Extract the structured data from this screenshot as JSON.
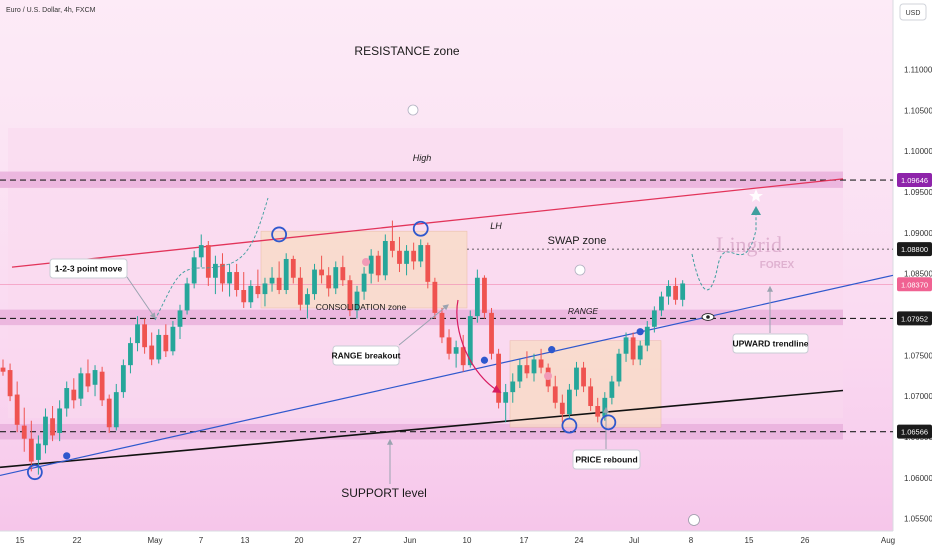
{
  "header": {
    "title": "Euro / U.S. Dollar, 4h, FXCM"
  },
  "axis": {
    "currency": "USD"
  },
  "colors": {
    "bull": "#26a69a",
    "bear": "#ef5350",
    "zone": "#e9b0dc",
    "trendline": "#2f58cd",
    "support_line": "#111111",
    "resistance_line": "#e2345a",
    "box_fill": "#f9dcc4",
    "forecast": "#3f9e9e",
    "marker": "#2f58cd"
  },
  "annotations": {
    "resistance_zone": "RESISTANCE zone",
    "support_level": "SUPPORT level",
    "swap_zone": "SWAP zone",
    "consolidation_zone": "CONSOLIDATION zone",
    "range": "RANGE",
    "high": "High",
    "lh": "LH",
    "point_move": "1-2-3 point move",
    "range_breakout": "RANGE breakout",
    "price_rebound": "PRICE rebound",
    "upward_trendline": "UPWARD trendline",
    "watermark_main": "Lingrid",
    "watermark_sub": "FOREX"
  },
  "chart_data": {
    "type": "candlestick",
    "title": "Euro / U.S. Dollar, 4h, FXCM",
    "ylabel": "USD",
    "ylim": [
      1.0535,
      1.1185
    ],
    "y_ticks": [
      "1.11000",
      "1.10500",
      "1.10000",
      "1.09500",
      "1.09000",
      "1.08500",
      "1.08000",
      "1.07500",
      "1.07000",
      "1.06500",
      "1.06000",
      "1.05500"
    ],
    "x_ticks": [
      "15",
      "22",
      "May",
      "7",
      "13",
      "20",
      "27",
      "Jun",
      "10",
      "17",
      "24",
      "Jul",
      "8",
      "15",
      "26",
      "Aug"
    ],
    "price_labels": [
      "1.09646",
      "1.08800",
      "1.08370",
      "1.07952",
      "1.06566"
    ],
    "price_label_values": [
      1.09646,
      1.088,
      1.0837,
      1.07952,
      1.06566
    ],
    "current_price": 1.0837,
    "zones": [
      {
        "name": "RESISTANCE zone",
        "low": 1.0955,
        "high": 1.0975
      },
      {
        "name": "SWAP zone",
        "low": 1.0787,
        "high": 1.0806
      },
      {
        "name": "SUPPORT level",
        "low": 1.0647,
        "high": 1.0666
      }
    ],
    "series": [
      {
        "points": [
          {
            "i": 0,
            "o": 1.0735,
            "h": 1.0745,
            "l": 1.0725,
            "c": 1.073
          },
          {
            "i": 1,
            "o": 1.0732,
            "h": 1.074,
            "l": 1.0694,
            "c": 1.07
          },
          {
            "i": 2,
            "o": 1.0702,
            "h": 1.0718,
            "l": 1.0656,
            "c": 1.0665
          },
          {
            "i": 3,
            "o": 1.0664,
            "h": 1.0686,
            "l": 1.0632,
            "c": 1.0648
          },
          {
            "i": 4,
            "o": 1.0648,
            "h": 1.067,
            "l": 1.0608,
            "c": 1.062
          },
          {
            "i": 5,
            "o": 1.0622,
            "h": 1.0652,
            "l": 1.0604,
            "c": 1.0642
          },
          {
            "i": 6,
            "o": 1.064,
            "h": 1.0685,
            "l": 1.063,
            "c": 1.0675
          },
          {
            "i": 7,
            "o": 1.0673,
            "h": 1.0688,
            "l": 1.0645,
            "c": 1.0652
          },
          {
            "i": 8,
            "o": 1.0655,
            "h": 1.0695,
            "l": 1.0645,
            "c": 1.0685
          },
          {
            "i": 9,
            "o": 1.0685,
            "h": 1.0718,
            "l": 1.0675,
            "c": 1.071
          },
          {
            "i": 10,
            "o": 1.0708,
            "h": 1.0722,
            "l": 1.0685,
            "c": 1.0695
          },
          {
            "i": 11,
            "o": 1.0697,
            "h": 1.0735,
            "l": 1.0688,
            "c": 1.0728
          },
          {
            "i": 12,
            "o": 1.0728,
            "h": 1.0745,
            "l": 1.0705,
            "c": 1.0712
          },
          {
            "i": 13,
            "o": 1.0714,
            "h": 1.0738,
            "l": 1.07,
            "c": 1.0732
          },
          {
            "i": 14,
            "o": 1.073,
            "h": 1.0736,
            "l": 1.0688,
            "c": 1.0695
          },
          {
            "i": 15,
            "o": 1.0697,
            "h": 1.0702,
            "l": 1.0655,
            "c": 1.0662
          },
          {
            "i": 16,
            "o": 1.0662,
            "h": 1.0715,
            "l": 1.0658,
            "c": 1.0705
          },
          {
            "i": 17,
            "o": 1.0705,
            "h": 1.0745,
            "l": 1.0698,
            "c": 1.0738
          },
          {
            "i": 18,
            "o": 1.0738,
            "h": 1.0772,
            "l": 1.0728,
            "c": 1.0765
          },
          {
            "i": 19,
            "o": 1.0765,
            "h": 1.0798,
            "l": 1.0755,
            "c": 1.0788
          },
          {
            "i": 20,
            "o": 1.0788,
            "h": 1.0795,
            "l": 1.0752,
            "c": 1.076
          },
          {
            "i": 21,
            "o": 1.0762,
            "h": 1.0778,
            "l": 1.0738,
            "c": 1.0745
          },
          {
            "i": 22,
            "o": 1.0745,
            "h": 1.0782,
            "l": 1.074,
            "c": 1.0775
          },
          {
            "i": 23,
            "o": 1.0775,
            "h": 1.0788,
            "l": 1.0748,
            "c": 1.0755
          },
          {
            "i": 24,
            "o": 1.0755,
            "h": 1.0792,
            "l": 1.075,
            "c": 1.0785
          },
          {
            "i": 25,
            "o": 1.0785,
            "h": 1.0812,
            "l": 1.077,
            "c": 1.0805
          },
          {
            "i": 26,
            "o": 1.0805,
            "h": 1.0845,
            "l": 1.08,
            "c": 1.0838
          },
          {
            "i": 27,
            "o": 1.0838,
            "h": 1.0878,
            "l": 1.0832,
            "c": 1.087
          },
          {
            "i": 28,
            "o": 1.087,
            "h": 1.0898,
            "l": 1.0858,
            "c": 1.0885
          },
          {
            "i": 29,
            "o": 1.0885,
            "h": 1.089,
            "l": 1.0835,
            "c": 1.0845
          },
          {
            "i": 30,
            "o": 1.0845,
            "h": 1.0872,
            "l": 1.0825,
            "c": 1.0862
          },
          {
            "i": 31,
            "o": 1.0862,
            "h": 1.0875,
            "l": 1.0828,
            "c": 1.0838
          },
          {
            "i": 32,
            "o": 1.0838,
            "h": 1.0862,
            "l": 1.0822,
            "c": 1.0852
          },
          {
            "i": 33,
            "o": 1.0852,
            "h": 1.0862,
            "l": 1.0822,
            "c": 1.083
          },
          {
            "i": 34,
            "o": 1.083,
            "h": 1.0852,
            "l": 1.0808,
            "c": 1.0815
          },
          {
            "i": 35,
            "o": 1.0815,
            "h": 1.0842,
            "l": 1.0808,
            "c": 1.0835
          },
          {
            "i": 36,
            "o": 1.0835,
            "h": 1.0855,
            "l": 1.082,
            "c": 1.0825
          },
          {
            "i": 37,
            "o": 1.0825,
            "h": 1.0845,
            "l": 1.081,
            "c": 1.0838
          },
          {
            "i": 38,
            "o": 1.0838,
            "h": 1.0858,
            "l": 1.0828,
            "c": 1.0845
          },
          {
            "i": 39,
            "o": 1.0845,
            "h": 1.0865,
            "l": 1.0825,
            "c": 1.083
          },
          {
            "i": 40,
            "o": 1.083,
            "h": 1.0875,
            "l": 1.0825,
            "c": 1.0868
          },
          {
            "i": 41,
            "o": 1.0868,
            "h": 1.0872,
            "l": 1.0838,
            "c": 1.0845
          },
          {
            "i": 42,
            "o": 1.0845,
            "h": 1.0858,
            "l": 1.0805,
            "c": 1.0812
          },
          {
            "i": 43,
            "o": 1.0812,
            "h": 1.0832,
            "l": 1.0795,
            "c": 1.0825
          },
          {
            "i": 44,
            "o": 1.0825,
            "h": 1.0862,
            "l": 1.0818,
            "c": 1.0855
          },
          {
            "i": 45,
            "o": 1.0855,
            "h": 1.0872,
            "l": 1.0838,
            "c": 1.0848
          },
          {
            "i": 46,
            "o": 1.0848,
            "h": 1.0858,
            "l": 1.0822,
            "c": 1.0832
          },
          {
            "i": 47,
            "o": 1.0832,
            "h": 1.0865,
            "l": 1.0825,
            "c": 1.0858
          },
          {
            "i": 48,
            "o": 1.0858,
            "h": 1.0872,
            "l": 1.0835,
            "c": 1.0842
          },
          {
            "i": 49,
            "o": 1.0842,
            "h": 1.0848,
            "l": 1.0798,
            "c": 1.0805
          },
          {
            "i": 50,
            "o": 1.0805,
            "h": 1.0835,
            "l": 1.0795,
            "c": 1.0828
          },
          {
            "i": 51,
            "o": 1.0828,
            "h": 1.0858,
            "l": 1.0818,
            "c": 1.085
          },
          {
            "i": 52,
            "o": 1.085,
            "h": 1.088,
            "l": 1.0838,
            "c": 1.0872
          },
          {
            "i": 53,
            "o": 1.0872,
            "h": 1.0878,
            "l": 1.084,
            "c": 1.0848
          },
          {
            "i": 54,
            "o": 1.0848,
            "h": 1.0898,
            "l": 1.0842,
            "c": 1.089
          },
          {
            "i": 55,
            "o": 1.089,
            "h": 1.0915,
            "l": 1.087,
            "c": 1.0878
          },
          {
            "i": 56,
            "o": 1.0878,
            "h": 1.0895,
            "l": 1.0852,
            "c": 1.0862
          },
          {
            "i": 57,
            "o": 1.0862,
            "h": 1.0885,
            "l": 1.0848,
            "c": 1.0878
          },
          {
            "i": 58,
            "o": 1.0878,
            "h": 1.0888,
            "l": 1.0855,
            "c": 1.0865
          },
          {
            "i": 59,
            "o": 1.0865,
            "h": 1.0892,
            "l": 1.0858,
            "c": 1.0885
          },
          {
            "i": 60,
            "o": 1.0885,
            "h": 1.0888,
            "l": 1.0832,
            "c": 1.084
          },
          {
            "i": 61,
            "o": 1.084,
            "h": 1.0845,
            "l": 1.0795,
            "c": 1.0802
          },
          {
            "i": 62,
            "o": 1.0802,
            "h": 1.0808,
            "l": 1.0765,
            "c": 1.0772
          },
          {
            "i": 63,
            "o": 1.0772,
            "h": 1.0782,
            "l": 1.0745,
            "c": 1.0752
          },
          {
            "i": 64,
            "o": 1.0752,
            "h": 1.0768,
            "l": 1.0735,
            "c": 1.076
          },
          {
            "i": 65,
            "o": 1.076,
            "h": 1.0775,
            "l": 1.073,
            "c": 1.0738
          },
          {
            "i": 66,
            "o": 1.0738,
            "h": 1.0805,
            "l": 1.0735,
            "c": 1.0798
          },
          {
            "i": 67,
            "o": 1.0798,
            "h": 1.0855,
            "l": 1.079,
            "c": 1.0845
          },
          {
            "i": 68,
            "o": 1.0845,
            "h": 1.0848,
            "l": 1.0795,
            "c": 1.0802
          },
          {
            "i": 69,
            "o": 1.0802,
            "h": 1.0808,
            "l": 1.0745,
            "c": 1.0752
          },
          {
            "i": 70,
            "o": 1.0752,
            "h": 1.0758,
            "l": 1.0685,
            "c": 1.0692
          },
          {
            "i": 71,
            "o": 1.0692,
            "h": 1.0715,
            "l": 1.0668,
            "c": 1.0705
          },
          {
            "i": 72,
            "o": 1.0705,
            "h": 1.0728,
            "l": 1.0692,
            "c": 1.0718
          },
          {
            "i": 73,
            "o": 1.0718,
            "h": 1.0745,
            "l": 1.071,
            "c": 1.0738
          },
          {
            "i": 74,
            "o": 1.0738,
            "h": 1.0755,
            "l": 1.0722,
            "c": 1.0728
          },
          {
            "i": 75,
            "o": 1.0728,
            "h": 1.0752,
            "l": 1.0718,
            "c": 1.0745
          },
          {
            "i": 76,
            "o": 1.0745,
            "h": 1.0758,
            "l": 1.0728,
            "c": 1.0735
          },
          {
            "i": 77,
            "o": 1.0735,
            "h": 1.074,
            "l": 1.0705,
            "c": 1.0712
          },
          {
            "i": 78,
            "o": 1.0712,
            "h": 1.0725,
            "l": 1.0685,
            "c": 1.0692
          },
          {
            "i": 79,
            "o": 1.0692,
            "h": 1.0702,
            "l": 1.0668,
            "c": 1.0678
          },
          {
            "i": 80,
            "o": 1.0678,
            "h": 1.0715,
            "l": 1.0672,
            "c": 1.0708
          },
          {
            "i": 81,
            "o": 1.0708,
            "h": 1.0742,
            "l": 1.07,
            "c": 1.0735
          },
          {
            "i": 82,
            "o": 1.0735,
            "h": 1.0742,
            "l": 1.0705,
            "c": 1.0712
          },
          {
            "i": 83,
            "o": 1.0712,
            "h": 1.0722,
            "l": 1.0682,
            "c": 1.0688
          },
          {
            "i": 84,
            "o": 1.0688,
            "h": 1.0698,
            "l": 1.0668,
            "c": 1.0675
          },
          {
            "i": 85,
            "o": 1.0675,
            "h": 1.0705,
            "l": 1.067,
            "c": 1.0698
          },
          {
            "i": 86,
            "o": 1.0698,
            "h": 1.0725,
            "l": 1.069,
            "c": 1.0718
          },
          {
            "i": 87,
            "o": 1.0718,
            "h": 1.0758,
            "l": 1.0712,
            "c": 1.0752
          },
          {
            "i": 88,
            "o": 1.0752,
            "h": 1.0778,
            "l": 1.0742,
            "c": 1.0772
          },
          {
            "i": 89,
            "o": 1.0772,
            "h": 1.0778,
            "l": 1.0738,
            "c": 1.0745
          },
          {
            "i": 90,
            "o": 1.0745,
            "h": 1.0768,
            "l": 1.0738,
            "c": 1.0762
          },
          {
            "i": 91,
            "o": 1.0762,
            "h": 1.0792,
            "l": 1.0755,
            "c": 1.0785
          },
          {
            "i": 92,
            "o": 1.0785,
            "h": 1.081,
            "l": 1.0778,
            "c": 1.0805
          },
          {
            "i": 93,
            "o": 1.0805,
            "h": 1.0828,
            "l": 1.0798,
            "c": 1.0822
          },
          {
            "i": 94,
            "o": 1.0822,
            "h": 1.0842,
            "l": 1.0812,
            "c": 1.0835
          },
          {
            "i": 95,
            "o": 1.0835,
            "h": 1.0845,
            "l": 1.0812,
            "c": 1.0818
          },
          {
            "i": 96,
            "o": 1.0818,
            "h": 1.0842,
            "l": 1.081,
            "c": 1.0838
          }
        ]
      }
    ]
  }
}
